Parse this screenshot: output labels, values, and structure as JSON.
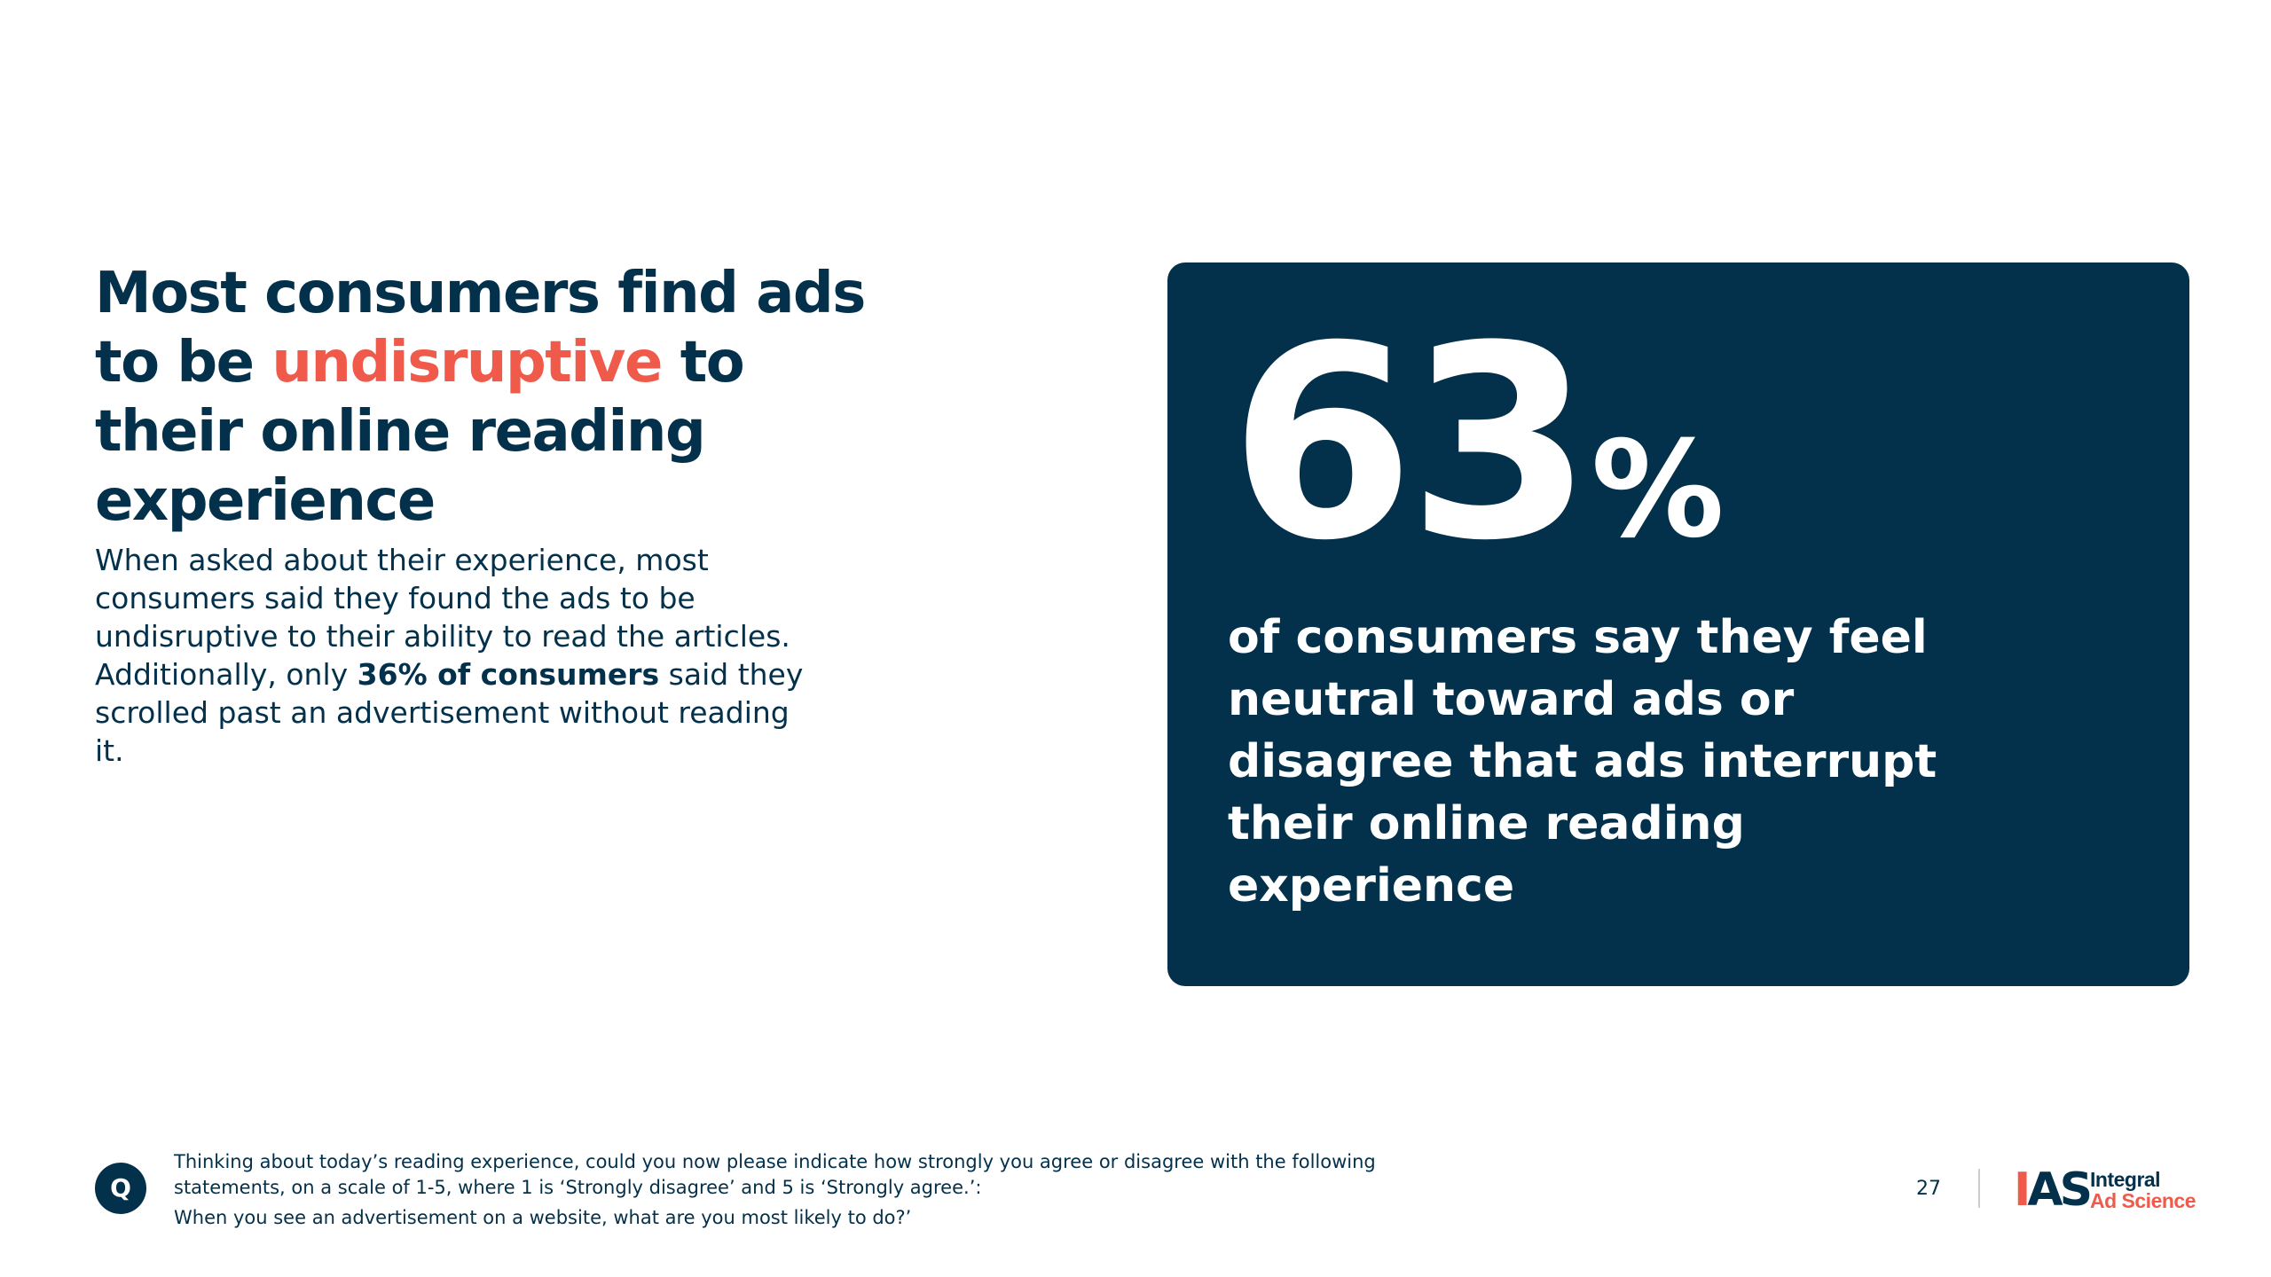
{
  "headline": {
    "part1": "Most consumers find ads to be ",
    "highlight": "undisruptive",
    "part2": " to their online reading experience"
  },
  "body": {
    "part1": "When asked about their experience, most consumers said they found the ads to be undisruptive to their ability to read the articles. Additionally, only ",
    "bold": "36% of consumers",
    "part2": " said they scrolled past an advertisement without reading it."
  },
  "stat": {
    "value": "63",
    "unit": "%",
    "description": "of consumers say they feel neutral toward ads or disagree that ads interrupt their online reading experience"
  },
  "question": {
    "badge": "Q",
    "line1": "Thinking about today’s reading experience, could you now please indicate how strongly you agree or disagree with the following",
    "line2": "statements, on a scale of  1-5, where 1 is ‘Strongly disagree’ and 5 is ‘Strongly agree.’:",
    "line3": "When you see an advertisement on a website, what are you most likely to do?’"
  },
  "footer": {
    "page_number": "27",
    "logo_mark_left": "I",
    "logo_mark_right": "AS",
    "logo_word1": "Integral",
    "logo_word2": "Ad Science"
  },
  "colors": {
    "navy": "#03304a",
    "accent": "#f05a4b",
    "background": "#ffffff"
  }
}
